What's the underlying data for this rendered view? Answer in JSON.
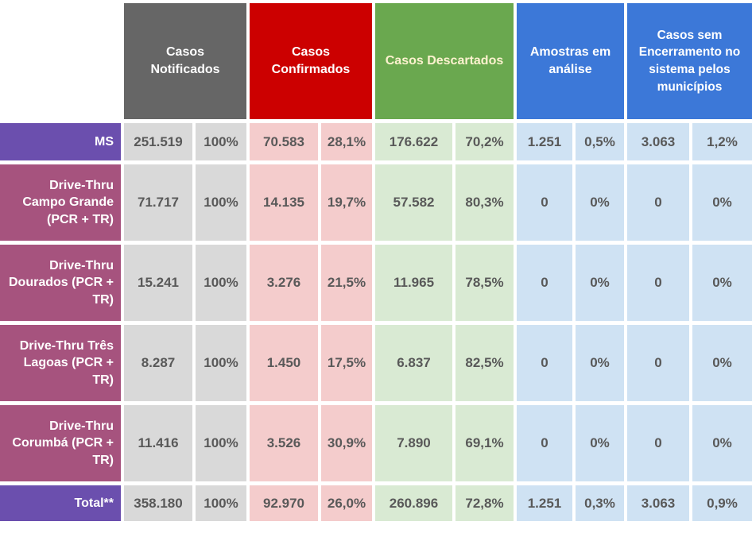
{
  "chart_data": {
    "type": "table",
    "columns": [
      {
        "label": "Casos Notificados",
        "header_bg": "#666666",
        "header_text": "#ffffff",
        "cell_bg": "#d9d9d9",
        "subcolumns": [
          "total",
          "percent"
        ]
      },
      {
        "label": "Casos Confirmados",
        "header_bg": "#cc0000",
        "header_text": "#ffffff",
        "cell_bg": "#f4cccc",
        "subcolumns": [
          "total",
          "percent"
        ]
      },
      {
        "label": "Casos Descartados",
        "header_bg": "#6aa84f",
        "header_text": "#fdf2cf",
        "cell_bg": "#d9ead3",
        "subcolumns": [
          "total",
          "percent"
        ]
      },
      {
        "label": "Amostras em análise",
        "header_bg": "#3c78d8",
        "header_text": "#ffffff",
        "cell_bg": "#cfe2f3",
        "subcolumns": [
          "total",
          "percent"
        ]
      },
      {
        "label": "Casos sem Encerramento no sistema pelos municípios",
        "header_bg": "#3c78d8",
        "header_text": "#ffffff",
        "cell_bg": "#cfe2f3",
        "subcolumns": [
          "total",
          "percent"
        ]
      }
    ],
    "rows": [
      {
        "label": "MS",
        "label_bg": "#6b4fae",
        "values": [
          "251.519",
          "100%",
          "70.583",
          "28,1%",
          "176.622",
          "70,2%",
          "1.251",
          "0,5%",
          "3.063",
          "1,2%"
        ]
      },
      {
        "label": "Drive-Thru Campo Grande (PCR + TR)",
        "label_bg": "#a6537e",
        "values": [
          "71.717",
          "100%",
          "14.135",
          "19,7%",
          "57.582",
          "80,3%",
          "0",
          "0%",
          "0",
          "0%"
        ]
      },
      {
        "label": "Drive-Thru Dourados (PCR + TR)",
        "label_bg": "#a6537e",
        "values": [
          "15.241",
          "100%",
          "3.276",
          "21,5%",
          "11.965",
          "78,5%",
          "0",
          "0%",
          "0",
          "0%"
        ]
      },
      {
        "label": "Drive-Thru Três Lagoas (PCR + TR)",
        "label_bg": "#a6537e",
        "values": [
          "8.287",
          "100%",
          "1.450",
          "17,5%",
          "6.837",
          "82,5%",
          "0",
          "0%",
          "0",
          "0%"
        ]
      },
      {
        "label": "Drive-Thru Corumbá (PCR + TR)",
        "label_bg": "#a6537e",
        "values": [
          "11.416",
          "100%",
          "3.526",
          "30,9%",
          "7.890",
          "69,1%",
          "0",
          "0%",
          "0",
          "0%"
        ]
      },
      {
        "label": "Total**",
        "label_bg": "#6b4fae",
        "values": [
          "358.180",
          "100%",
          "92.970",
          "26,0%",
          "260.896",
          "72,8%",
          "1.251",
          "0,3%",
          "3.063",
          "0,9%"
        ]
      }
    ]
  },
  "colors": {
    "data_text": "#595959",
    "header_text": "#ffffff",
    "descartados_header_text": "#fdf2cf",
    "purple_label_bg": "#6b4fae",
    "magenta_label_bg": "#a6537e",
    "background": "#ffffff"
  }
}
